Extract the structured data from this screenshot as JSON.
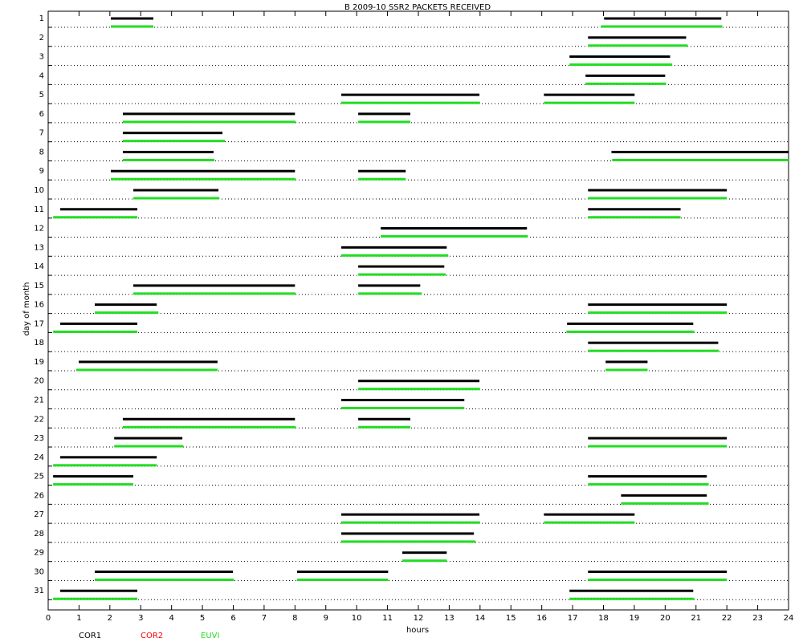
{
  "chart_data": {
    "type": "timeline",
    "title": "B  2009-10 SSR2 PACKETS RECEIVED",
    "x_label": "hours",
    "y_label": "day of month",
    "xlim": [
      0,
      24
    ],
    "xticks": [
      0,
      1,
      2,
      3,
      4,
      5,
      6,
      7,
      8,
      9,
      10,
      11,
      12,
      13,
      14,
      15,
      16,
      17,
      18,
      19,
      20,
      21,
      22,
      23,
      24
    ],
    "ylim": [
      0.62,
      32
    ],
    "y_reversed": true,
    "yticks": [
      1,
      2,
      3,
      4,
      5,
      6,
      7,
      8,
      9,
      10,
      11,
      12,
      13,
      14,
      15,
      16,
      17,
      18,
      19,
      20,
      21,
      22,
      23,
      24,
      25,
      26,
      27,
      28,
      29,
      30,
      31
    ],
    "grid": true,
    "series": [
      {
        "name": "COR1",
        "color": "#000000",
        "values": [
          {
            "day": 1,
            "start": 2.03,
            "end": 3.41
          },
          {
            "day": 1,
            "start": 18.02,
            "end": 21.82
          },
          {
            "day": 2,
            "start": 17.5,
            "end": 20.68
          },
          {
            "day": 3,
            "start": 16.9,
            "end": 20.16
          },
          {
            "day": 4,
            "start": 17.42,
            "end": 20.0
          },
          {
            "day": 5,
            "start": 9.5,
            "end": 13.98
          },
          {
            "day": 5,
            "start": 16.07,
            "end": 19.01
          },
          {
            "day": 6,
            "start": 2.42,
            "end": 8.0
          },
          {
            "day": 6,
            "start": 10.05,
            "end": 11.74
          },
          {
            "day": 7,
            "start": 2.42,
            "end": 5.65
          },
          {
            "day": 8,
            "start": 2.42,
            "end": 5.36
          },
          {
            "day": 8,
            "start": 18.26,
            "end": 24
          },
          {
            "day": 9,
            "start": 2.03,
            "end": 8.0
          },
          {
            "day": 9,
            "start": 10.05,
            "end": 11.59
          },
          {
            "day": 10,
            "start": 2.76,
            "end": 5.52
          },
          {
            "day": 10,
            "start": 17.5,
            "end": 22.0
          },
          {
            "day": 11,
            "start": 0.39,
            "end": 2.89
          },
          {
            "day": 11,
            "start": 17.5,
            "end": 20.5
          },
          {
            "day": 12,
            "start": 10.78,
            "end": 15.52
          },
          {
            "day": 13,
            "start": 9.5,
            "end": 12.92
          },
          {
            "day": 14,
            "start": 10.05,
            "end": 12.84
          },
          {
            "day": 15,
            "start": 2.76,
            "end": 8.0
          },
          {
            "day": 15,
            "start": 10.05,
            "end": 12.06
          },
          {
            "day": 16,
            "start": 1.51,
            "end": 3.52
          },
          {
            "day": 16,
            "start": 17.5,
            "end": 22.0
          },
          {
            "day": 17,
            "start": 0.39,
            "end": 2.89
          },
          {
            "day": 17,
            "start": 16.82,
            "end": 20.91
          },
          {
            "day": 18,
            "start": 17.5,
            "end": 21.72
          },
          {
            "day": 19,
            "start": 0.99,
            "end": 5.49
          },
          {
            "day": 19,
            "start": 18.07,
            "end": 19.43
          },
          {
            "day": 20,
            "start": 10.05,
            "end": 13.98
          },
          {
            "day": 21,
            "start": 9.5,
            "end": 13.49
          },
          {
            "day": 22,
            "start": 2.42,
            "end": 8.0
          },
          {
            "day": 22,
            "start": 10.05,
            "end": 11.74
          },
          {
            "day": 23,
            "start": 2.14,
            "end": 4.35
          },
          {
            "day": 23,
            "start": 17.5,
            "end": 22.0
          },
          {
            "day": 24,
            "start": 0.39,
            "end": 3.52
          },
          {
            "day": 25,
            "start": 0.16,
            "end": 2.76
          },
          {
            "day": 25,
            "start": 17.5,
            "end": 21.35
          },
          {
            "day": 26,
            "start": 18.57,
            "end": 21.35
          },
          {
            "day": 27,
            "start": 9.5,
            "end": 13.98
          },
          {
            "day": 27,
            "start": 16.07,
            "end": 19.01
          },
          {
            "day": 28,
            "start": 9.5,
            "end": 13.8
          },
          {
            "day": 29,
            "start": 11.48,
            "end": 12.92
          },
          {
            "day": 30,
            "start": 1.51,
            "end": 5.99
          },
          {
            "day": 30,
            "start": 8.07,
            "end": 11.02
          },
          {
            "day": 30,
            "start": 17.5,
            "end": 22.0
          },
          {
            "day": 31,
            "start": 0.39,
            "end": 2.89
          },
          {
            "day": 31,
            "start": 16.9,
            "end": 20.91
          }
        ]
      },
      {
        "name": "COR2",
        "color": "#ff0000",
        "values": []
      },
      {
        "name": "EUVI",
        "color": "#22dd22",
        "values": [
          {
            "day": 1,
            "start": 2.03,
            "end": 3.41
          },
          {
            "day": 1,
            "start": 17.92,
            "end": 21.85
          },
          {
            "day": 2,
            "start": 17.5,
            "end": 20.73
          },
          {
            "day": 3,
            "start": 16.9,
            "end": 20.23
          },
          {
            "day": 4,
            "start": 17.42,
            "end": 20.03
          },
          {
            "day": 5,
            "start": 9.5,
            "end": 14.0
          },
          {
            "day": 5,
            "start": 16.07,
            "end": 19.01
          },
          {
            "day": 6,
            "start": 2.42,
            "end": 8.02
          },
          {
            "day": 6,
            "start": 10.05,
            "end": 11.74
          },
          {
            "day": 7,
            "start": 2.42,
            "end": 5.73
          },
          {
            "day": 8,
            "start": 2.42,
            "end": 5.39
          },
          {
            "day": 8,
            "start": 18.28,
            "end": 24
          },
          {
            "day": 9,
            "start": 2.03,
            "end": 8.02
          },
          {
            "day": 9,
            "start": 10.05,
            "end": 11.59
          },
          {
            "day": 10,
            "start": 2.76,
            "end": 5.55
          },
          {
            "day": 10,
            "start": 17.5,
            "end": 22.0
          },
          {
            "day": 11,
            "start": 0.16,
            "end": 2.89
          },
          {
            "day": 11,
            "start": 17.5,
            "end": 20.5
          },
          {
            "day": 12,
            "start": 10.78,
            "end": 15.55
          },
          {
            "day": 13,
            "start": 9.5,
            "end": 12.97
          },
          {
            "day": 14,
            "start": 10.05,
            "end": 12.89
          },
          {
            "day": 15,
            "start": 2.76,
            "end": 8.02
          },
          {
            "day": 15,
            "start": 10.05,
            "end": 12.11
          },
          {
            "day": 16,
            "start": 1.51,
            "end": 3.57
          },
          {
            "day": 16,
            "start": 17.5,
            "end": 22.0
          },
          {
            "day": 17,
            "start": 0.16,
            "end": 2.89
          },
          {
            "day": 17,
            "start": 16.8,
            "end": 20.94
          },
          {
            "day": 18,
            "start": 17.5,
            "end": 21.74
          },
          {
            "day": 19,
            "start": 0.91,
            "end": 5.49
          },
          {
            "day": 19,
            "start": 18.07,
            "end": 19.43
          },
          {
            "day": 20,
            "start": 10.05,
            "end": 14.0
          },
          {
            "day": 21,
            "start": 9.5,
            "end": 13.49
          },
          {
            "day": 22,
            "start": 2.42,
            "end": 8.02
          },
          {
            "day": 22,
            "start": 10.05,
            "end": 11.74
          },
          {
            "day": 23,
            "start": 2.14,
            "end": 4.38
          },
          {
            "day": 23,
            "start": 17.5,
            "end": 22.0
          },
          {
            "day": 24,
            "start": 0.16,
            "end": 3.52
          },
          {
            "day": 25,
            "start": 0.16,
            "end": 2.76
          },
          {
            "day": 25,
            "start": 17.5,
            "end": 21.41
          },
          {
            "day": 26,
            "start": 18.57,
            "end": 21.41
          },
          {
            "day": 27,
            "start": 9.5,
            "end": 14.0
          },
          {
            "day": 27,
            "start": 16.07,
            "end": 19.01
          },
          {
            "day": 28,
            "start": 9.5,
            "end": 13.85
          },
          {
            "day": 29,
            "start": 11.48,
            "end": 12.92
          },
          {
            "day": 30,
            "start": 1.51,
            "end": 6.02
          },
          {
            "day": 30,
            "start": 8.07,
            "end": 11.02
          },
          {
            "day": 30,
            "start": 17.5,
            "end": 22.0
          },
          {
            "day": 31,
            "start": 0.16,
            "end": 2.89
          },
          {
            "day": 31,
            "start": 16.9,
            "end": 20.94
          }
        ]
      }
    ]
  }
}
